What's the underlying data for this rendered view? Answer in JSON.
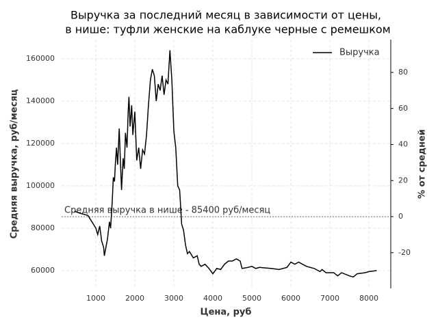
{
  "chart_data": {
    "type": "line",
    "title": [
      "Выручка за последний месяц в зависимости от цены,",
      "в нише: туфли женские на каблуке черные с ремешком"
    ],
    "xlabel": "Цена, руб",
    "ylabel": "Средняя выручка, руб/месяц",
    "y2label": "% от средней",
    "x": [
      450,
      600,
      800,
      900,
      1000,
      1050,
      1100,
      1150,
      1200,
      1220,
      1250,
      1300,
      1350,
      1380,
      1420,
      1450,
      1480,
      1500,
      1530,
      1560,
      1600,
      1630,
      1660,
      1700,
      1730,
      1760,
      1800,
      1830,
      1850,
      1880,
      1920,
      1950,
      2000,
      2050,
      2100,
      2150,
      2200,
      2250,
      2300,
      2350,
      2400,
      2450,
      2500,
      2550,
      2600,
      2650,
      2700,
      2750,
      2800,
      2850,
      2900,
      2950,
      3000,
      3050,
      3100,
      3150,
      3200,
      3250,
      3300,
      3350,
      3400,
      3500,
      3600,
      3650,
      3700,
      3800,
      3900,
      4000,
      4100,
      4200,
      4300,
      4400,
      4500,
      4600,
      4700,
      4750,
      4900,
      5000,
      5100,
      5200,
      5500,
      5700,
      5900,
      6000,
      6100,
      6200,
      6400,
      6600,
      6750,
      6800,
      6900,
      7100,
      7200,
      7300,
      7500,
      7600,
      7700,
      7900,
      8000,
      8200
    ],
    "series": [
      {
        "name": "Выручка",
        "color": "#000000",
        "values": [
          88000,
          87000,
          86000,
          83000,
          80000,
          77000,
          81000,
          74000,
          71000,
          67000,
          70000,
          75000,
          83000,
          80000,
          92000,
          104000,
          102000,
          110000,
          118000,
          110000,
          127000,
          112000,
          98000,
          113000,
          108000,
          125000,
          118000,
          135000,
          142000,
          128000,
          138000,
          124000,
          135000,
          112000,
          118000,
          108000,
          117000,
          115000,
          124000,
          138000,
          150000,
          155000,
          152000,
          140000,
          148000,
          145000,
          152000,
          143000,
          150000,
          148000,
          164000,
          150000,
          126000,
          118000,
          100000,
          98000,
          82000,
          79000,
          72000,
          68000,
          69000,
          66000,
          67000,
          63000,
          62000,
          63000,
          61000,
          58500,
          61000,
          60500,
          63000,
          64500,
          64500,
          65500,
          64500,
          61000,
          61500,
          62000,
          61000,
          61500,
          61000,
          60500,
          61500,
          64000,
          63000,
          64000,
          62000,
          61000,
          59500,
          60500,
          59000,
          59000,
          57500,
          59000,
          57500,
          57000,
          58500,
          59000,
          59500,
          60000
        ]
      }
    ],
    "hline": {
      "value": 85400,
      "color": "#999999",
      "label": "Средняя выручка в нише - 85400 руб/месяц"
    },
    "xlim": [
      123,
      8544
    ],
    "xticks": [
      1000,
      2000,
      3000,
      4000,
      5000,
      6000,
      7000,
      8000
    ],
    "ylim": [
      51600,
      169000
    ],
    "yticks": [
      60000,
      80000,
      100000,
      120000,
      140000,
      160000
    ],
    "y2lim": [
      -39.8,
      98.2
    ],
    "y2ticks": [
      -20,
      0,
      20,
      40,
      60,
      80
    ],
    "grid": true,
    "legend": "upper right"
  }
}
